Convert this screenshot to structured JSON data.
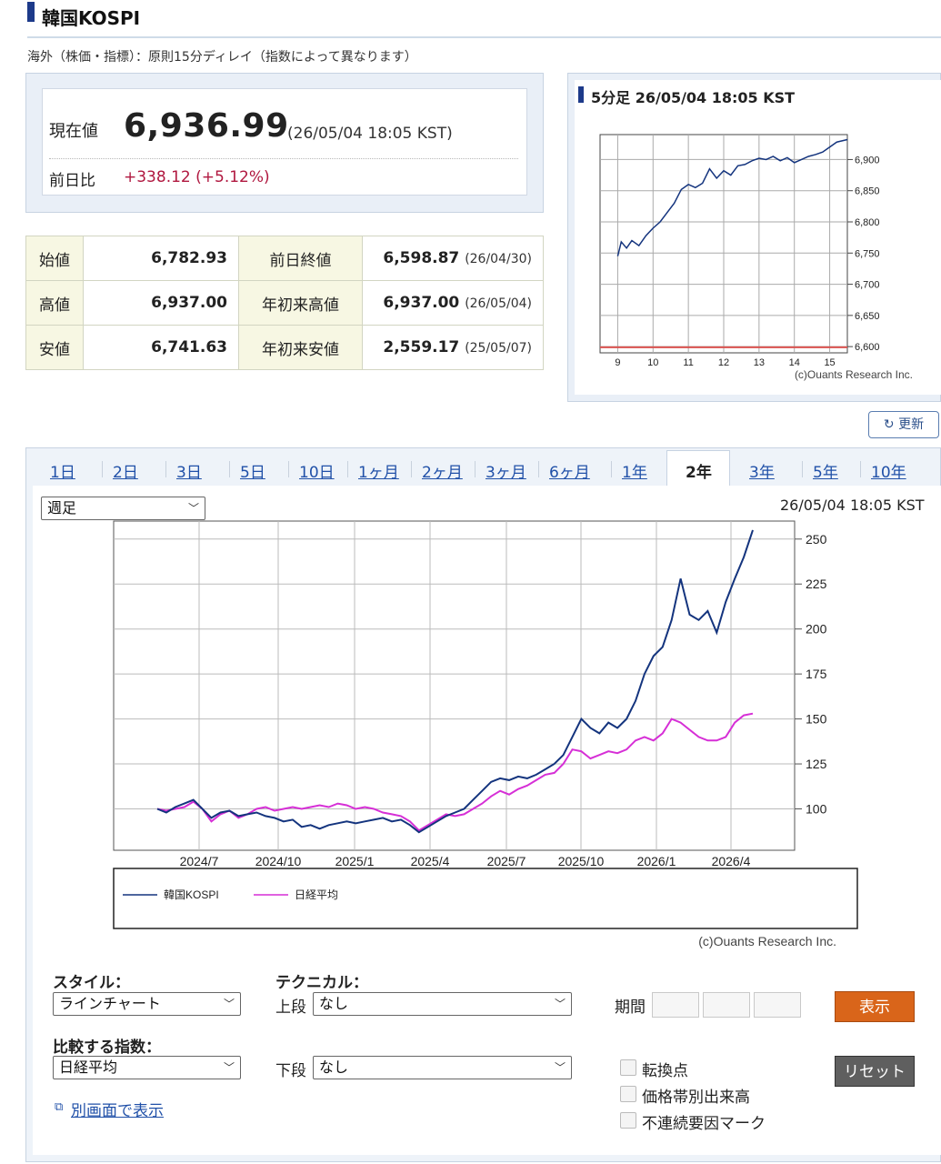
{
  "header": {
    "title": "韓国KOSPI",
    "notice": "海外（株価・指標）：原則15分ディレイ（指数によって異なります）"
  },
  "quote": {
    "current_label": "現在値",
    "current_value": "6,936.99",
    "current_time": "(26/05/04 18:05 KST)",
    "change_label": "前日比",
    "change_value": "+338.12 (+5.12%)",
    "change_color": "#b0173f"
  },
  "stats": [
    {
      "label": "始値",
      "value": "6,782.93",
      "label2": "前日終値",
      "value2": "6,598.87",
      "note2": "(26/04/30)"
    },
    {
      "label": "高値",
      "value": "6,937.00",
      "label2": "年初来高値",
      "value2": "6,937.00",
      "note2": "(26/05/04)"
    },
    {
      "label": "安値",
      "value": "6,741.63",
      "label2": "年初来安値",
      "value2": "2,559.17",
      "note2": "(25/05/07)"
    }
  ],
  "intraday": {
    "title": "5分足 26/05/04 18:05 KST",
    "copyright": "(c)Ouants Research Inc.",
    "refresh_label": "更新"
  },
  "tabs": [
    {
      "label": "1日"
    },
    {
      "label": "2日"
    },
    {
      "label": "3日"
    },
    {
      "label": "5日"
    },
    {
      "label": "10日"
    },
    {
      "label": "1ヶ月"
    },
    {
      "label": "2ヶ月"
    },
    {
      "label": "3ヶ月"
    },
    {
      "label": "6ヶ月"
    },
    {
      "label": "1年"
    },
    {
      "label": "2年",
      "active": true
    },
    {
      "label": "3年"
    },
    {
      "label": "5年"
    },
    {
      "label": "10年"
    }
  ],
  "main_chart": {
    "interval_select": "週足",
    "timestamp": "26/05/04 18:05 KST",
    "copyright": "(c)Ouants Research Inc."
  },
  "controls": {
    "style_label": "スタイル：",
    "style_value": "ラインチャート",
    "technical_label": "テクニカル：",
    "upper_label": "上段",
    "upper_value": "なし",
    "lower_label": "下段",
    "lower_value": "なし",
    "compare_label": "比較する指数：",
    "compare_value": "日経平均",
    "period_label": "期間",
    "show_button": "表示",
    "reset_button": "リセット",
    "checkbox1": "転換点",
    "checkbox2": "価格帯別出来高",
    "checkbox3": "不連続要因マーク",
    "new_window_link": "別画面で表示"
  },
  "colors": {
    "kospi": "#14347e",
    "nikkei": "#d62fd6",
    "accent_orange": "#d9651a",
    "baseline_red": "#d9534f"
  },
  "chart_data": [
    {
      "type": "line",
      "title": "5分足 26/05/04 18:05 KST",
      "x_ticks": [
        "9",
        "10",
        "11",
        "12",
        "13",
        "14",
        "15"
      ],
      "y_ticks": [
        6600,
        6650,
        6700,
        6750,
        6800,
        6850,
        6900
      ],
      "ylim": [
        6590,
        6940
      ],
      "xlim": [
        8.5,
        15.5
      ],
      "series": [
        {
          "color": "#14347e",
          "x": [
            9.0,
            9.1,
            9.25,
            9.4,
            9.6,
            9.8,
            10.0,
            10.2,
            10.4,
            10.6,
            10.8,
            11.0,
            11.2,
            11.4,
            11.6,
            11.8,
            12.0,
            12.2,
            12.4,
            12.6,
            12.8,
            13.0,
            13.2,
            13.4,
            13.6,
            13.8,
            14.0,
            14.2,
            14.4,
            14.6,
            14.8,
            15.0,
            15.2,
            15.5
          ],
          "y": [
            6745,
            6768,
            6758,
            6770,
            6762,
            6778,
            6790,
            6800,
            6815,
            6830,
            6852,
            6860,
            6855,
            6862,
            6885,
            6870,
            6882,
            6875,
            6890,
            6892,
            6898,
            6902,
            6900,
            6905,
            6898,
            6903,
            6895,
            6900,
            6905,
            6908,
            6912,
            6920,
            6928,
            6932
          ]
        },
        {
          "color": "#d9534f",
          "x": [
            8.5,
            15.5
          ],
          "y": [
            6598.87,
            6598.87
          ]
        }
      ]
    },
    {
      "type": "line",
      "x_ticks": [
        "2024/7",
        "2024/10",
        "2025/1",
        "2025/4",
        "2025/7",
        "2025/10",
        "2026/1",
        "2026/4"
      ],
      "y_ticks": [
        100,
        125,
        150,
        175,
        200,
        225,
        250
      ],
      "ylim": [
        77,
        260
      ],
      "legend": "bottom",
      "series": [
        {
          "name": "韓国KOSPI",
          "color": "#14347e",
          "values": [
            100,
            98,
            101,
            103,
            105,
            100,
            95,
            98,
            99,
            96,
            97,
            98,
            96,
            95,
            93,
            94,
            90,
            91,
            89,
            91,
            92,
            93,
            92,
            93,
            94,
            95,
            93,
            94,
            91,
            87,
            90,
            93,
            96,
            98,
            100,
            105,
            110,
            115,
            117,
            116,
            118,
            117,
            119,
            122,
            125,
            130,
            140,
            150,
            145,
            142,
            148,
            145,
            150,
            160,
            175,
            185,
            190,
            205,
            228,
            208,
            205,
            210,
            198,
            215,
            228,
            240,
            255
          ]
        },
        {
          "name": "日経平均",
          "color": "#d62fd6",
          "values": [
            100,
            99,
            100,
            101,
            104,
            100,
            93,
            97,
            99,
            95,
            97,
            100,
            101,
            99,
            100,
            101,
            100,
            101,
            102,
            101,
            103,
            102,
            100,
            101,
            100,
            98,
            97,
            96,
            93,
            88,
            91,
            94,
            97,
            96,
            97,
            100,
            103,
            107,
            110,
            108,
            111,
            113,
            116,
            119,
            120,
            125,
            133,
            132,
            128,
            130,
            132,
            131,
            133,
            138,
            140,
            138,
            142,
            150,
            148,
            144,
            140,
            138,
            138,
            140,
            148,
            152,
            153
          ]
        }
      ]
    }
  ]
}
